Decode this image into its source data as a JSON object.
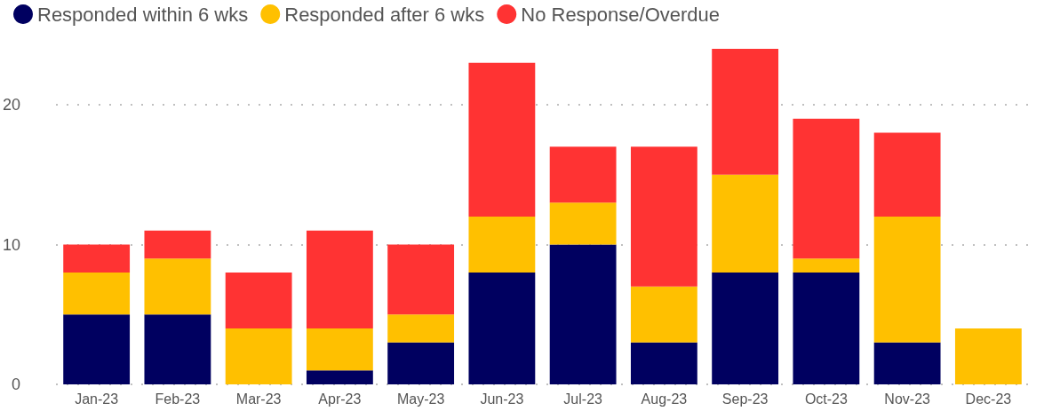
{
  "chart_data": {
    "type": "bar",
    "stacked": true,
    "categories": [
      "Jan-23",
      "Feb-23",
      "Mar-23",
      "Apr-23",
      "May-23",
      "Jun-23",
      "Jul-23",
      "Aug-23",
      "Sep-23",
      "Oct-23",
      "Nov-23",
      "Dec-23"
    ],
    "series": [
      {
        "name": "Responded within 6 wks",
        "color": "#000060",
        "values": [
          5,
          5,
          0,
          1,
          3,
          8,
          10,
          3,
          8,
          8,
          3,
          0
        ]
      },
      {
        "name": "Responded after 6 wks",
        "color": "#ffc000",
        "values": [
          3,
          4,
          4,
          3,
          2,
          4,
          3,
          4,
          7,
          1,
          9,
          4
        ]
      },
      {
        "name": "No Response/Overdue",
        "color": "#ff3333",
        "values": [
          2,
          2,
          4,
          7,
          5,
          11,
          4,
          10,
          9,
          10,
          6,
          0
        ]
      }
    ],
    "ylim": [
      0,
      24
    ],
    "yticks": [
      0,
      10,
      20
    ],
    "grid": "y",
    "legend": "top left"
  }
}
